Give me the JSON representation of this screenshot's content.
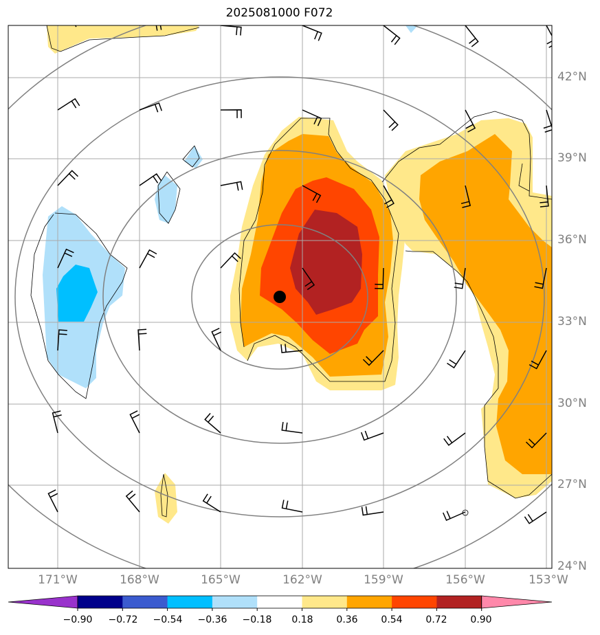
{
  "title": "2025081000 F072",
  "lat_labels": [
    "42°N",
    "39°N",
    "36°N",
    "33°N",
    "30°N",
    "27°N",
    "24°N"
  ],
  "lon_labels": [
    "171°W",
    "168°W",
    "165°W",
    "162°W",
    "159°W",
    "156°W",
    "153°W"
  ],
  "colorbar": {
    "labels": [
      "−0.90",
      "−0.72",
      "−0.54",
      "−0.36",
      "−0.18",
      "0.18",
      "0.36",
      "0.54",
      "0.72",
      "0.90"
    ],
    "colors": [
      "#9932cc",
      "#00008b",
      "#3b5bcf",
      "#00bfff",
      "#b0e0fa",
      "#ffffff",
      "#ffe88a",
      "#ffa500",
      "#ff4500",
      "#b22222",
      "#ff88aa"
    ]
  },
  "colors": {
    "grid": "#aaaaaa",
    "contour": "#808080",
    "fill_yellow": "#ffe88a",
    "fill_orange": "#ffa500",
    "fill_redorange": "#ff4500",
    "fill_darkred": "#b22222",
    "fill_lightblue": "#b0e0fa",
    "fill_blue": "#00bfff"
  },
  "center_marker": "filled-circle"
}
